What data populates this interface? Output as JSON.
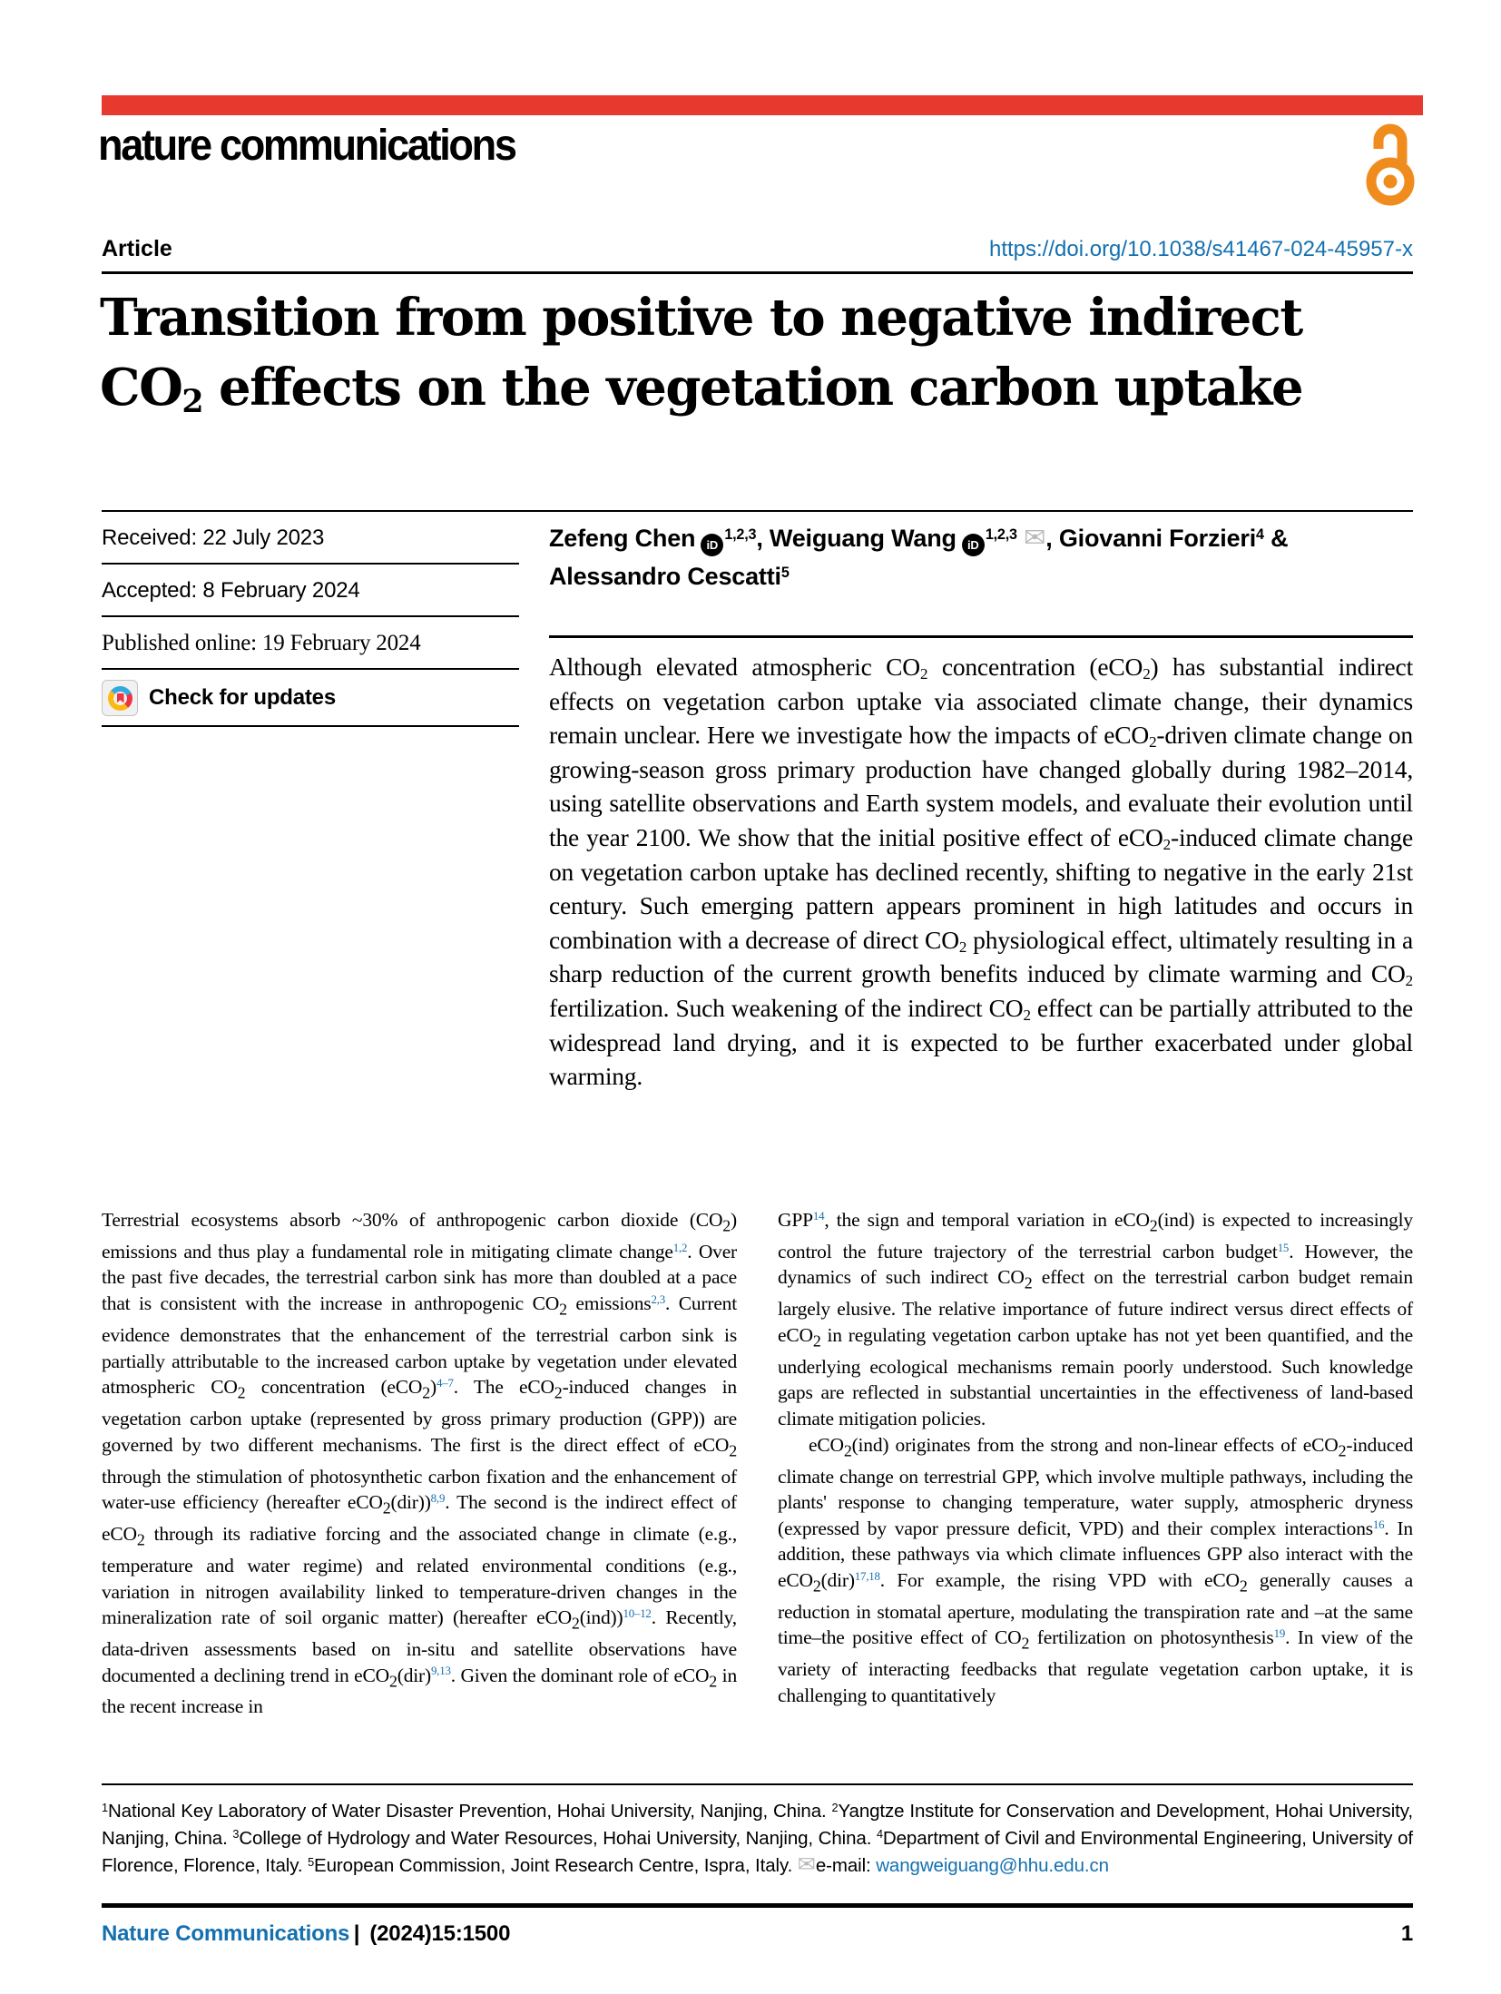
{
  "colors": {
    "brand_red": "#e8392f",
    "oa_orange": "#f08c1d",
    "link_blue": "#1470b0"
  },
  "masthead": {
    "journal_logo": "nature communications",
    "open_access_icon": "open-padlock"
  },
  "header": {
    "kicker": "Article",
    "doi": "https://doi.org/10.1038/s41467-024-45957-x",
    "title_html": "Transition from positive to negative indirect<br>CO<sub>2</sub> effects on the vegetation carbon uptake"
  },
  "meta": {
    "received": "Received: 22 July 2023",
    "accepted": "Accepted: 8 February 2024",
    "published": "Published online: 19 February 2024",
    "check_updates": "Check for updates"
  },
  "authors_html": "Zefeng Chen<span class='orcid' data-name='orcid-icon' data-interactable='true'>iD</span><sup>1,2,3</sup>, Weiguang Wang<span class='orcid' data-name='orcid-icon' data-interactable='true'>iD</span><sup>1,2,3</sup> <span class='mail-ic' data-name='email-icon' data-interactable='true'>&#9993;</span>, Giovanni Forzieri<sup>4</sup> &amp;<br>Alessandro Cescatti<sup>5</sup>",
  "abstract_html": "Although elevated atmospheric CO<sub>2</sub> concentration (eCO<sub>2</sub>) has substantial indirect effects on vegetation carbon uptake via associated climate change, their dynamics remain unclear. Here we investigate how the impacts of eCO<sub>2</sub>-driven climate change on growing-season gross primary production have changed globally during 1982–2014, using satellite observations and Earth system models, and evaluate their evolution until the year 2100. We show that the initial positive effect of eCO<sub>2</sub>-induced climate change on vegetation carbon uptake has declined recently, shifting to negative in the early 21st century. Such emerging pattern appears prominent in high latitudes and occurs in combination with a decrease of direct CO<sub>2</sub> physiological effect, ultimately resulting in a sharp reduction of the current growth benefits induced by climate warming and CO<sub>2</sub> fertilization. Such weakening of the indirect CO<sub>2</sub> effect can be partially attributed to the widespread land drying, and it is expected to be further exacerbated under global warming.",
  "body": {
    "left_html": "Terrestrial ecosystems absorb ~30% of anthropogenic carbon dioxide (CO<sub>2</sub>) emissions and thus play a fundamental role in mitigating climate change<sup class='ref'>1,2</sup>. Over the past five decades, the terrestrial carbon sink has more than doubled at a pace that is consistent with the increase in anthropogenic CO<sub>2</sub> emissions<sup class='ref'>2,3</sup>. Current evidence demonstrates that the enhancement of the terrestrial carbon sink is partially attributable to the increased carbon uptake by vegetation under elevated atmospheric CO<sub>2</sub> concentration (eCO<sub>2</sub>)<sup class='ref'>4–7</sup>. The eCO<sub>2</sub>-induced changes in vegetation carbon uptake (represented by gross primary production (GPP)) are governed by two different mechanisms. The first is the direct effect of eCO<sub>2</sub> through the stimulation of photosynthetic carbon fixation and the enhancement of water-use efficiency (hereafter eCO<sub>2</sub>(dir))<sup class='ref'>8,9</sup>. The second is the indirect effect of eCO<sub>2</sub> through its radiative forcing and the associated change in climate (e.g., temperature and water regime) and related environmental conditions (e.g., variation in nitrogen availability linked to temperature-driven changes in the mineralization rate of soil organic matter) (hereafter eCO<sub>2</sub>(ind))<sup class='ref'>10–12</sup>. Recently, data-driven assessments based on in-situ and satellite observations have documented a declining trend in eCO<sub>2</sub>(dir)<sup class='ref'>9,13</sup>. Given the dominant role of eCO<sub>2</sub> in the recent increase in",
    "right_p1_html": "GPP<sup class='ref'>14</sup>, the sign and temporal variation in eCO<sub>2</sub>(ind) is expected to increasingly control the future trajectory of the terrestrial carbon budget<sup class='ref'>15</sup>. However, the dynamics of such indirect CO<sub>2</sub> effect on the terrestrial carbon budget remain largely elusive. The relative importance of future indirect versus direct effects of eCO<sub>2</sub> in regulating vegetation carbon uptake has not yet been quantified, and the underlying ecological mechanisms remain poorly understood. Such knowledge gaps are reflected in substantial uncertainties in the effectiveness of land-based climate mitigation policies.",
    "right_p2_html": "eCO<sub>2</sub>(ind) originates from the strong and non-linear effects of eCO<sub>2</sub>-induced climate change on terrestrial GPP, which involve multiple pathways, including the plants' response to changing temperature, water supply, atmospheric dryness (expressed by vapor pressure deficit, VPD) and their complex interactions<sup class='ref'>16</sup>. In addition, these pathways via which climate influences GPP also interact with the eCO<sub>2</sub>(dir)<sup class='ref'>17,18</sup>. For example, the rising VPD with eCO<sub>2</sub> generally causes a reduction in stomatal aperture, modulating the transpiration rate and –at the same time–the positive effect of CO<sub>2</sub> fertilization on photosynthesis<sup class='ref'>19</sup>. In view of the variety of interacting feedbacks that regulate vegetation carbon uptake, it is challenging to quantitatively"
  },
  "footnotes_html": "<sup>1</sup>National Key Laboratory of Water Disaster Prevention, Hohai University, Nanjing, China. <sup>2</sup>Yangtze Institute for Conservation and Development, Hohai University, Nanjing, China. <sup>3</sup>College of Hydrology and Water Resources, Hohai University, Nanjing, China. <sup>4</sup>Department of Civil and Environmental Engineering, University of Florence, Florence, Italy. <sup>5</sup>European Commission, Joint Research Centre, Ispra, Italy. <span class='mail-gray' data-name='email-icon' data-interactable='false'>&#9993;</span>e-mail: <a class='link' data-name='email-link' data-interactable='true'>wangweiguang@hhu.edu.cn</a>",
  "footer": {
    "journal": "Nature Communications",
    "citation": " |  (2024)15:1500",
    "page_number": "1"
  }
}
